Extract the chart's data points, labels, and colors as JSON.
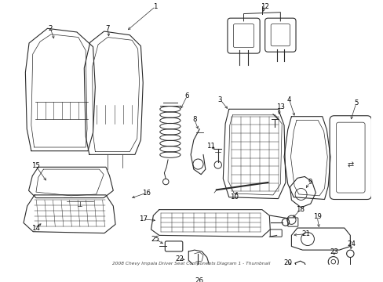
{
  "title": "2008 Chevy Impala Driver Seat Components Diagram 1 - Thumbnail",
  "bg": "#ffffff",
  "lc": "#2a2a2a",
  "figsize": [
    4.89,
    3.6
  ],
  "dpi": 100
}
